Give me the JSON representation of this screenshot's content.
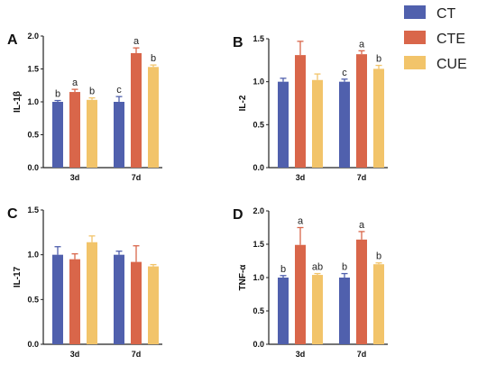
{
  "colors": {
    "CT": "#5060ad",
    "CTE": "#d9664a",
    "CUE": "#f2c46a",
    "axis": "#222222"
  },
  "legend": {
    "placement": "right",
    "items": [
      "CT",
      "CTE",
      "CUE"
    ]
  },
  "chart_data": [
    {
      "type": "bar",
      "panel": "A",
      "ylabel": "IL-1β",
      "ylim": [
        0,
        2.0
      ],
      "yticks": [
        "0.0",
        "0.5",
        "1.0",
        "1.5",
        "2.0"
      ],
      "categories": [
        "3d",
        "7d"
      ],
      "series": [
        {
          "name": "CT",
          "values": [
            1.0,
            1.0
          ],
          "errors": [
            0.02,
            0.08
          ],
          "labels": [
            "b",
            "c"
          ]
        },
        {
          "name": "CTE",
          "values": [
            1.15,
            1.74
          ],
          "errors": [
            0.04,
            0.08
          ],
          "labels": [
            "a",
            "a"
          ]
        },
        {
          "name": "CUE",
          "values": [
            1.03,
            1.53
          ],
          "errors": [
            0.03,
            0.03
          ],
          "labels": [
            "b",
            "b"
          ]
        }
      ]
    },
    {
      "type": "bar",
      "panel": "B",
      "ylabel": "IL-2",
      "ylim": [
        0,
        1.5
      ],
      "yticks": [
        "0.0",
        "0.5",
        "1.0",
        "1.5"
      ],
      "categories": [
        "3d",
        "7d"
      ],
      "series": [
        {
          "name": "CT",
          "values": [
            1.0,
            1.0
          ],
          "errors": [
            0.04,
            0.03
          ],
          "labels": [
            "",
            "c"
          ]
        },
        {
          "name": "CTE",
          "values": [
            1.31,
            1.32
          ],
          "errors": [
            0.16,
            0.04
          ],
          "labels": [
            "",
            "a"
          ]
        },
        {
          "name": "CUE",
          "values": [
            1.02,
            1.15
          ],
          "errors": [
            0.07,
            0.04
          ],
          "labels": [
            "",
            "b"
          ]
        }
      ]
    },
    {
      "type": "bar",
      "panel": "C",
      "ylabel": "IL-17",
      "ylim": [
        0,
        1.5
      ],
      "yticks": [
        "0.0",
        "0.5",
        "1.0",
        "1.5"
      ],
      "categories": [
        "3d",
        "7d"
      ],
      "series": [
        {
          "name": "CT",
          "values": [
            1.0,
            1.0
          ],
          "errors": [
            0.09,
            0.04
          ],
          "labels": [
            "",
            ""
          ]
        },
        {
          "name": "CTE",
          "values": [
            0.95,
            0.92
          ],
          "errors": [
            0.06,
            0.18
          ],
          "labels": [
            "",
            ""
          ]
        },
        {
          "name": "CUE",
          "values": [
            1.14,
            0.87
          ],
          "errors": [
            0.07,
            0.02
          ],
          "labels": [
            "",
            ""
          ]
        }
      ]
    },
    {
      "type": "bar",
      "panel": "D",
      "ylabel": "TNF-α",
      "ylim": [
        0,
        2.0
      ],
      "yticks": [
        "0.0",
        "0.5",
        "1.0",
        "1.5",
        "2.0"
      ],
      "categories": [
        "3d",
        "7d"
      ],
      "series": [
        {
          "name": "CT",
          "values": [
            1.0,
            1.0
          ],
          "errors": [
            0.03,
            0.06
          ],
          "labels": [
            "b",
            "b"
          ]
        },
        {
          "name": "CTE",
          "values": [
            1.49,
            1.57
          ],
          "errors": [
            0.26,
            0.12
          ],
          "labels": [
            "a",
            "a"
          ]
        },
        {
          "name": "CUE",
          "values": [
            1.04,
            1.2
          ],
          "errors": [
            0.02,
            0.02
          ],
          "labels": [
            "ab",
            "b"
          ]
        }
      ]
    }
  ]
}
